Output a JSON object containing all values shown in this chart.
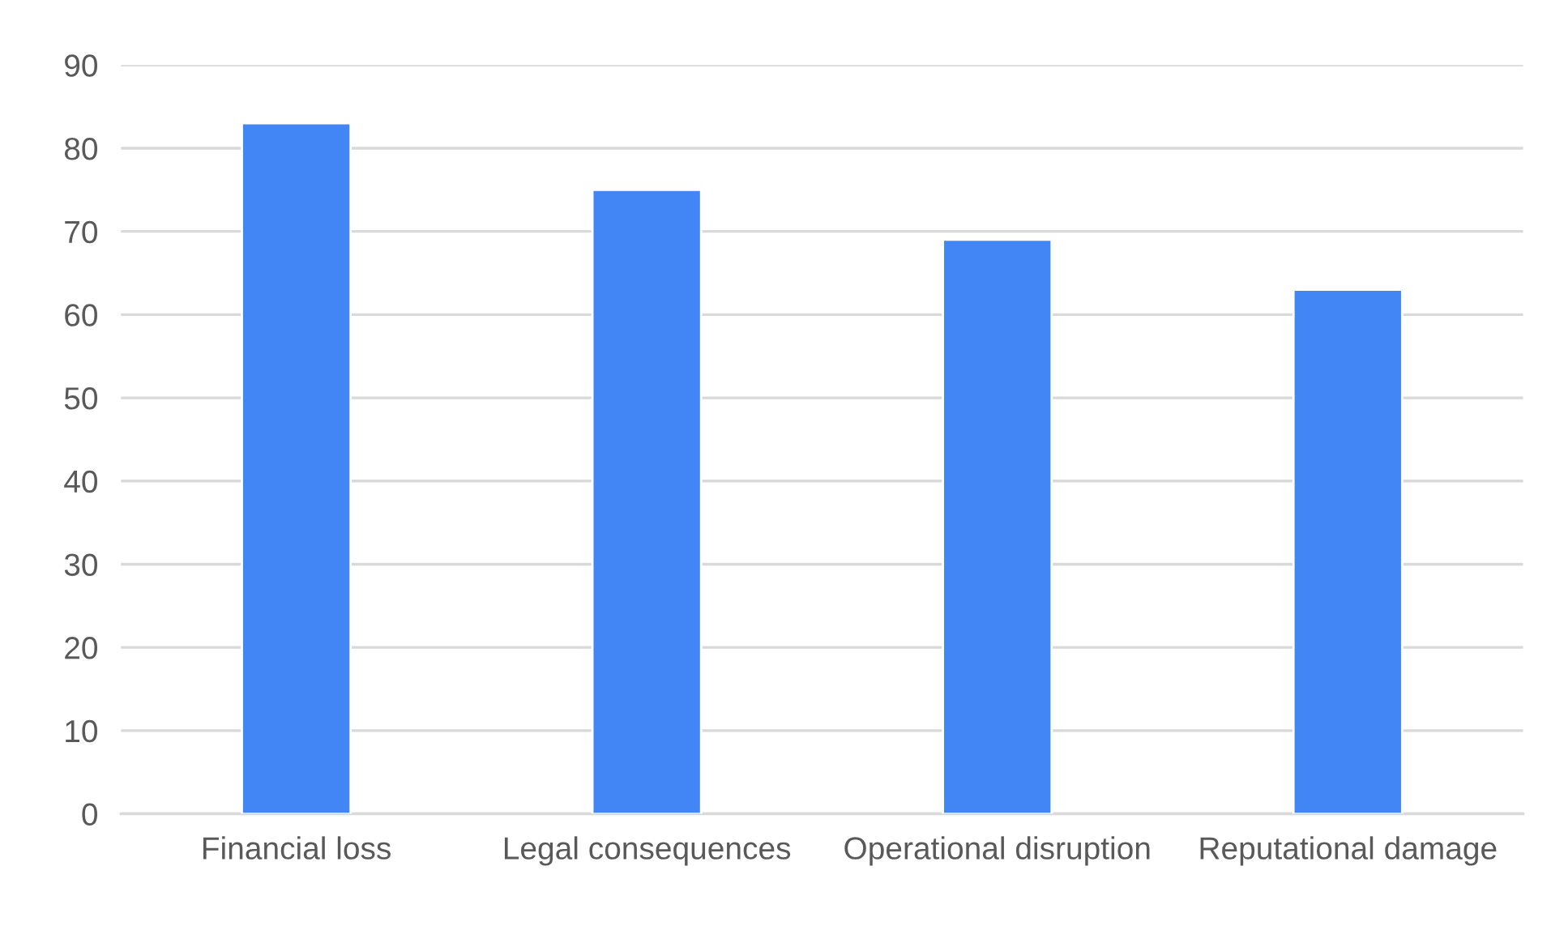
{
  "chart_data": {
    "type": "bar",
    "categories": [
      "Financial loss",
      "Legal consequences",
      "Operational disruption",
      "Reputational damage"
    ],
    "values": [
      83,
      75,
      69,
      63
    ],
    "color": "#4285f4",
    "ylim": [
      0,
      90
    ],
    "yticks": [
      0,
      10,
      20,
      30,
      40,
      50,
      60,
      70,
      80,
      90
    ],
    "grid": "y",
    "legend": false
  }
}
